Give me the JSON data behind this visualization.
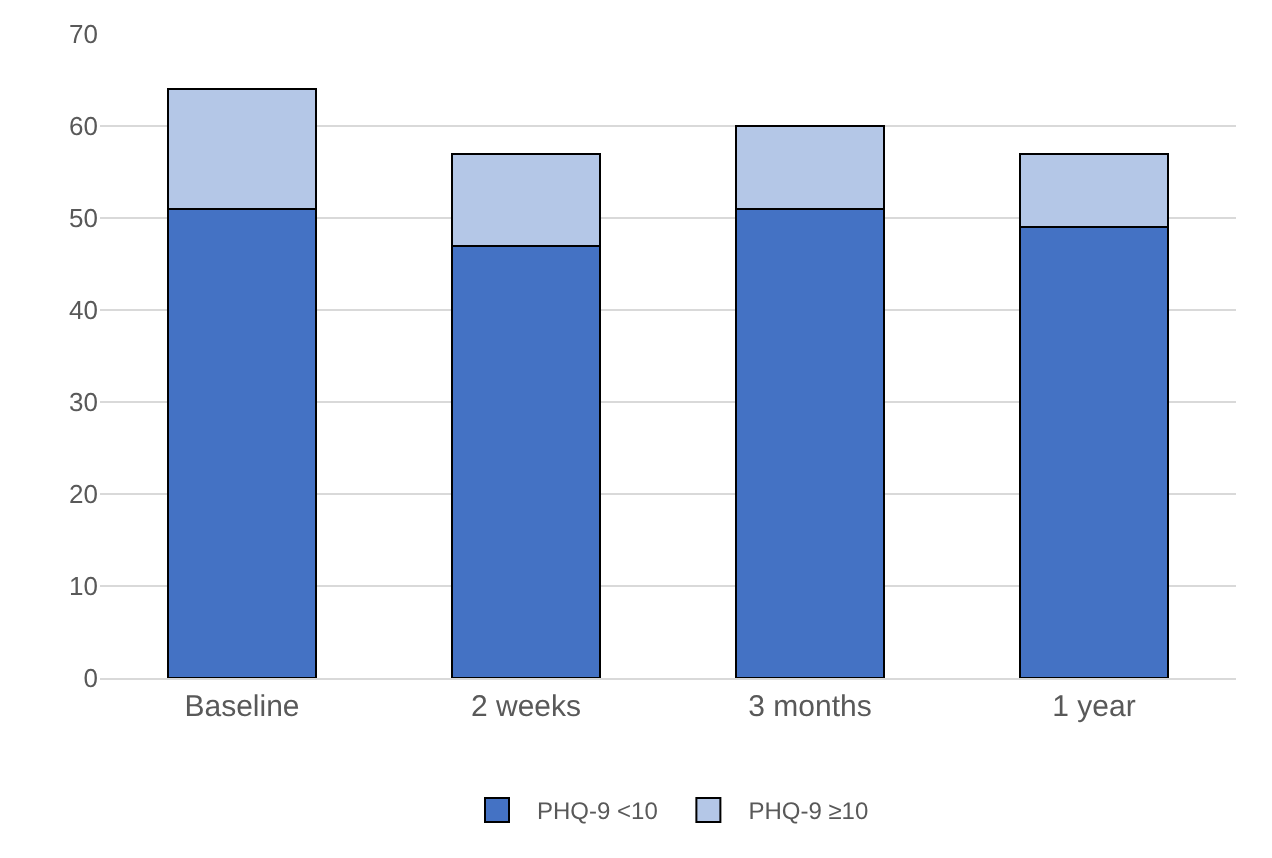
{
  "chart_data": {
    "type": "bar",
    "stacked": true,
    "categories": [
      "Baseline",
      "2 weeks",
      "3 months",
      "1 year"
    ],
    "series": [
      {
        "name": "PHQ-9 <10",
        "color": "#4472c4",
        "values": [
          51,
          47,
          51,
          49
        ]
      },
      {
        "name": "PHQ-9 ≥10",
        "color": "#b4c7e7",
        "values": [
          13,
          10,
          9,
          8
        ]
      }
    ],
    "ylim": [
      0,
      70
    ],
    "yticks": [
      0,
      10,
      20,
      30,
      40,
      50,
      60,
      70
    ],
    "grid": "y",
    "legend": "bottom"
  }
}
